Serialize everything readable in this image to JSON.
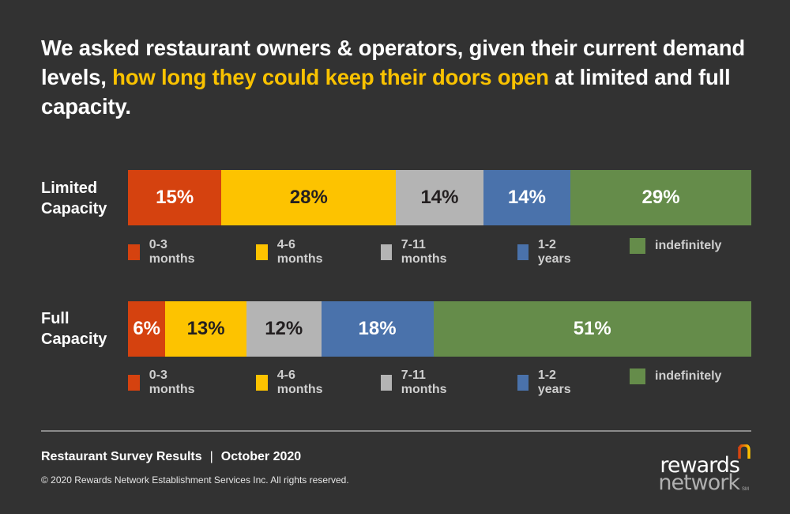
{
  "headline": {
    "part1": "We asked restaurant owners & operators, given their current demand levels, ",
    "highlight": "how long they could keep their doors open",
    "part2": " at limited and full capacity."
  },
  "colors": {
    "background": "#323232",
    "highlight": "#f9c200"
  },
  "chart_data": {
    "type": "bar",
    "orientation": "horizontal",
    "stacked": true,
    "title": "We asked restaurant owners & operators, given their current demand levels, how long they could keep their doors open at limited and full capacity.",
    "unit": "%",
    "categories": [
      "Limited Capacity",
      "Full Capacity"
    ],
    "series": [
      {
        "name": "0-3 months",
        "color": "#d5420f",
        "label_color": "#ffffff",
        "values": [
          15,
          6
        ]
      },
      {
        "name": "4-6 months",
        "color": "#fdc300",
        "label_color": "#231f20",
        "values": [
          28,
          13
        ]
      },
      {
        "name": "7-11 months",
        "color": "#b4b4b4",
        "label_color": "#231f20",
        "values": [
          14,
          12
        ]
      },
      {
        "name": "1-2 years",
        "color": "#4a72ab",
        "label_color": "#ffffff",
        "values": [
          14,
          18
        ]
      },
      {
        "name": "indefinitely",
        "color": "#658c4a",
        "label_color": "#ffffff",
        "values": [
          29,
          51
        ]
      }
    ],
    "legend": "below-each-bar",
    "xlabel": "",
    "ylabel": ""
  },
  "rows": [
    {
      "label_line1": "Limited",
      "label_line2": "Capacity"
    },
    {
      "label_line1": "Full",
      "label_line2": "Capacity"
    }
  ],
  "footer": {
    "title": "Restaurant Survey Results",
    "separator": "|",
    "date": "October 2020",
    "copyright": "© 2020 Rewards Network Establishment Services Inc. All rights reserved."
  },
  "logo": {
    "line1": "rewards",
    "line2": "network",
    "mark": "SM"
  }
}
